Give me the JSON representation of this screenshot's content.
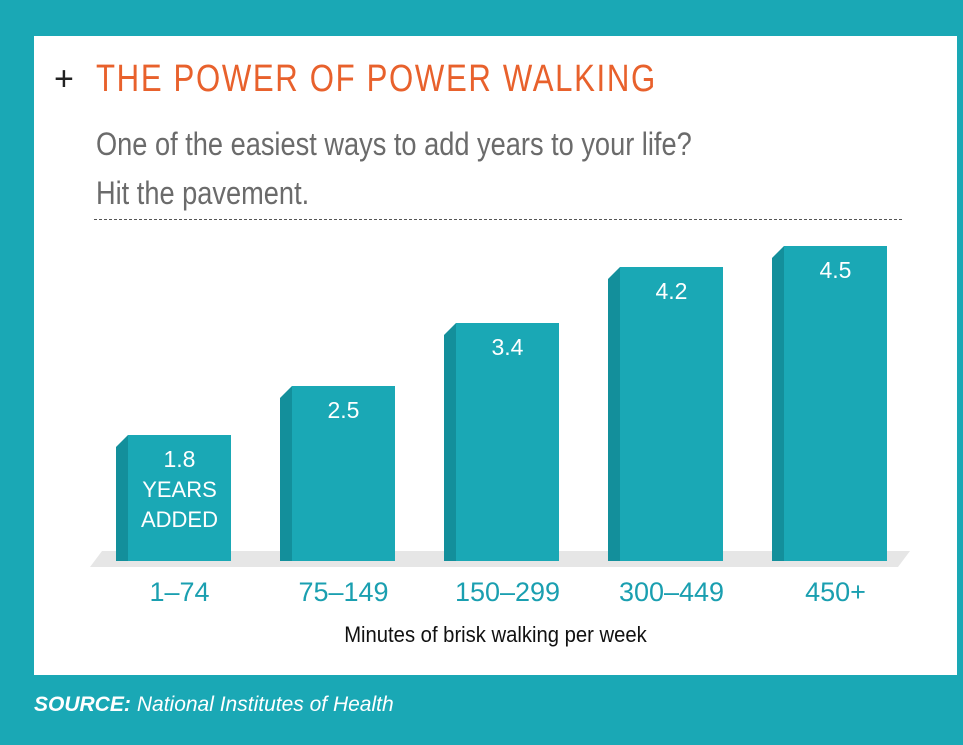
{
  "header": {
    "plus": "+",
    "title": "THE POWER OF POWER WALKING",
    "subtitle_line1": "One of the easiest ways to add years to your life?",
    "subtitle_line2": "Hit the pavement."
  },
  "colors": {
    "accent": "#e8612c",
    "bar_front": "#1aa8b5",
    "bar_side": "#138f9b",
    "bar_top": "#0f7f8a",
    "bar_label": "#ffffff",
    "category_label": "#1a9fb0",
    "floor": "#e6e6e6",
    "background": "#1aa8b5"
  },
  "chart_data": {
    "type": "bar",
    "title": "THE POWER OF POWER WALKING",
    "categories": [
      "1–74",
      "75–149",
      "150–299",
      "300–449",
      "450+"
    ],
    "values": [
      1.8,
      2.5,
      3.4,
      4.2,
      4.5
    ],
    "value_labels": [
      "1.8",
      "2.5",
      "3.4",
      "4.2",
      "4.5"
    ],
    "first_bar_unit_lines": [
      "YEARS",
      "ADDED"
    ],
    "series_name": "Years added",
    "xlabel": "Minutes of brisk walking per week",
    "ylabel": "",
    "ylim": [
      0,
      4.5
    ],
    "grid": false
  },
  "footer": {
    "source_label": "SOURCE:",
    "source_text": "National Institutes of Health"
  }
}
